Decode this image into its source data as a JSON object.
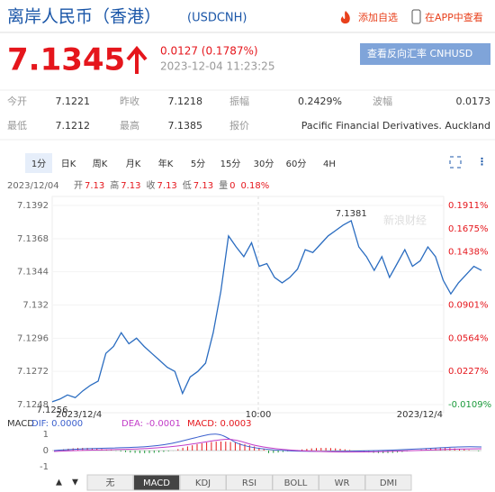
{
  "header": {
    "title": "离岸人民币（香港）",
    "code": "(USDCNH)",
    "add_watch": "添加自选",
    "open_app": "在APP中查看"
  },
  "quote": {
    "price": "7.1345",
    "change": "0.0127 (0.1787%)",
    "time": "2023-12-04 11:23:25",
    "reverse_button": "查看反向汇率 CNHUSD"
  },
  "stats": {
    "rows": [
      [
        {
          "label": "今开",
          "value": "7.1221"
        },
        {
          "label": "昨收",
          "value": "7.1218"
        },
        {
          "label": "振幅",
          "value": "0.2429%"
        },
        {
          "label": "波幅",
          "value": "0.0173"
        }
      ],
      [
        {
          "label": "最低",
          "value": "7.1212"
        },
        {
          "label": "最高",
          "value": "7.1385"
        },
        {
          "label": "报价",
          "value": "Pacific Financial Derivatives. Auckland"
        }
      ]
    ]
  },
  "tabs": [
    "1分",
    "日K",
    "周K",
    "月K",
    "年K",
    "5分",
    "15分",
    "30分",
    "60分",
    "4H"
  ],
  "info_line": {
    "date": "2023/12/04",
    "items": [
      {
        "label": "开",
        "value": "7.13"
      },
      {
        "label": "高",
        "value": "7.13"
      },
      {
        "label": "收",
        "value": "7.13"
      },
      {
        "label": "低",
        "value": "7.13"
      },
      {
        "label": "量",
        "value": "0"
      }
    ],
    "change": "0.18%"
  },
  "price_chart": {
    "type": "line",
    "color": "#2a6cc0",
    "watermark": "新浪财经",
    "x_labels": [
      "2023/12/4",
      "10:00",
      "2023/12/4"
    ],
    "values": [
      7.125,
      7.1252,
      7.1255,
      7.1253,
      7.1258,
      7.1262,
      7.1265,
      7.1285,
      7.129,
      7.13,
      7.1292,
      7.1296,
      7.129,
      7.1285,
      7.128,
      7.1275,
      7.1272,
      7.1256,
      7.1268,
      7.1272,
      7.1278,
      7.13,
      7.133,
      7.137,
      7.1362,
      7.1355,
      7.1365,
      7.1348,
      7.135,
      7.134,
      7.1336,
      7.134,
      7.1346,
      7.136,
      7.1358,
      7.1364,
      7.137,
      7.1374,
      7.1378,
      7.1381,
      7.1362,
      7.1355,
      7.1345,
      7.1355,
      7.134,
      7.135,
      7.136,
      7.1348,
      7.1352,
      7.1362,
      7.1355,
      7.1338,
      7.1328,
      7.1336,
      7.1342,
      7.1348,
      7.1345
    ],
    "ylim": [
      7.1248,
      7.1392
    ],
    "yticks": [
      7.1392,
      7.1368,
      7.1344,
      7.132,
      7.1296,
      7.1272,
      7.1248
    ],
    "y2lim": [
      -0.0109,
      0.1911
    ],
    "y2ticks": [
      {
        "value": 0.1911,
        "label": "0.1911%"
      },
      {
        "value": 0.1675,
        "label": "0.1675%"
      },
      {
        "value": 0.1438,
        "label": "0.1438%"
      },
      {
        "value": 0.0901,
        "label": "0.0901%"
      },
      {
        "value": 0.0564,
        "label": "0.0564%"
      },
      {
        "value": 0.0227,
        "label": "0.0227%"
      },
      {
        "value": -0.0109,
        "label": "-0.0109%"
      }
    ],
    "high_label": "7.1381",
    "low_label": "7.1256"
  },
  "macd": {
    "label": "MACD",
    "dif": "DIF: 0.0000",
    "dea": "DEA: -0.0001",
    "macd": "MACD: 0.0003",
    "ticks": [
      "1",
      "0",
      "-1"
    ]
  },
  "indicator_tabs": [
    "无",
    "MACD",
    "KDJ",
    "RSI",
    "BOLL",
    "WR",
    "DMI"
  ]
}
